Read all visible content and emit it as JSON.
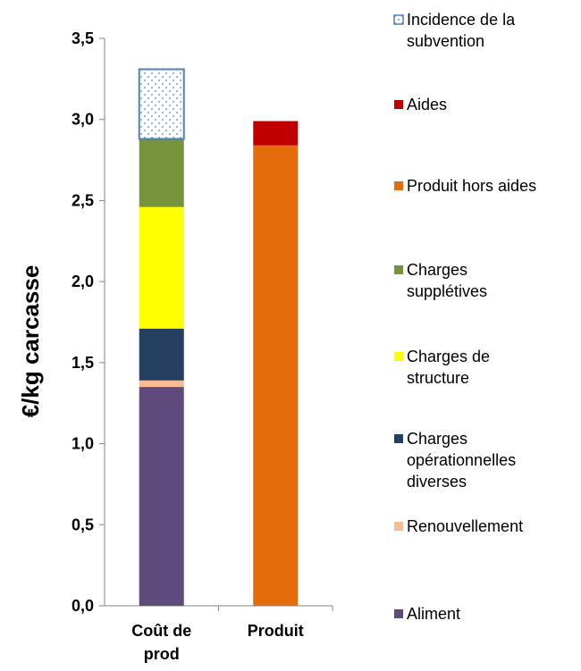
{
  "chart_data": {
    "type": "bar",
    "stacked": true,
    "categories": [
      "Coût de prod",
      "Produit"
    ],
    "category_lines": [
      [
        "Coût de",
        "prod"
      ],
      [
        "Produit"
      ]
    ],
    "ylabel": "€/kg carcasse",
    "ylim": [
      0,
      3.5
    ],
    "yticks": [
      0,
      0.5,
      1.0,
      1.5,
      2.0,
      2.5,
      3.0,
      3.5
    ],
    "ytick_labels": [
      "0,0",
      "0,5",
      "1,0",
      "1,5",
      "2,0",
      "2,5",
      "3,0",
      "3,5"
    ],
    "grid": false,
    "legend_position": "right",
    "series": [
      {
        "name": "Aliment",
        "color": "#5f4b7b",
        "values": [
          1.35,
          0
        ]
      },
      {
        "name": "Renouvellement",
        "color": "#f8bb94",
        "values": [
          0.04,
          0
        ]
      },
      {
        "name": "Charges opérationnelles diverses",
        "color": "#243f60",
        "values": [
          0.32,
          0
        ]
      },
      {
        "name": "Charges de structure",
        "color": "#ffff00",
        "values": [
          0.75,
          0
        ]
      },
      {
        "name": "Charges supplétives",
        "color": "#77933c",
        "values": [
          0.42,
          0
        ]
      },
      {
        "name": "Produit hors aides",
        "color": "#e46c0a",
        "values": [
          0,
          2.84
        ]
      },
      {
        "name": "Aides",
        "color": "#c00000",
        "values": [
          0,
          0.15
        ]
      },
      {
        "name": "Incidence de la subvention",
        "color": "#4f81bd",
        "pattern": "dotted",
        "values": [
          0.43,
          0
        ]
      }
    ],
    "legend_order": [
      {
        "series": 7,
        "lines": [
          "Incidence de la",
          "subvention"
        ]
      },
      {
        "series": 6,
        "lines": [
          "Aides"
        ]
      },
      {
        "series": 5,
        "lines": [
          "Produit hors aides"
        ]
      },
      {
        "series": 4,
        "lines": [
          "Charges",
          "supplétives"
        ]
      },
      {
        "series": 3,
        "lines": [
          "Charges de",
          "structure"
        ]
      },
      {
        "series": 2,
        "lines": [
          "Charges",
          "opérationnelles",
          "diverses"
        ]
      },
      {
        "series": 1,
        "lines": [
          "Renouvellement"
        ]
      },
      {
        "series": 0,
        "lines": [
          "Aliment"
        ]
      }
    ]
  }
}
